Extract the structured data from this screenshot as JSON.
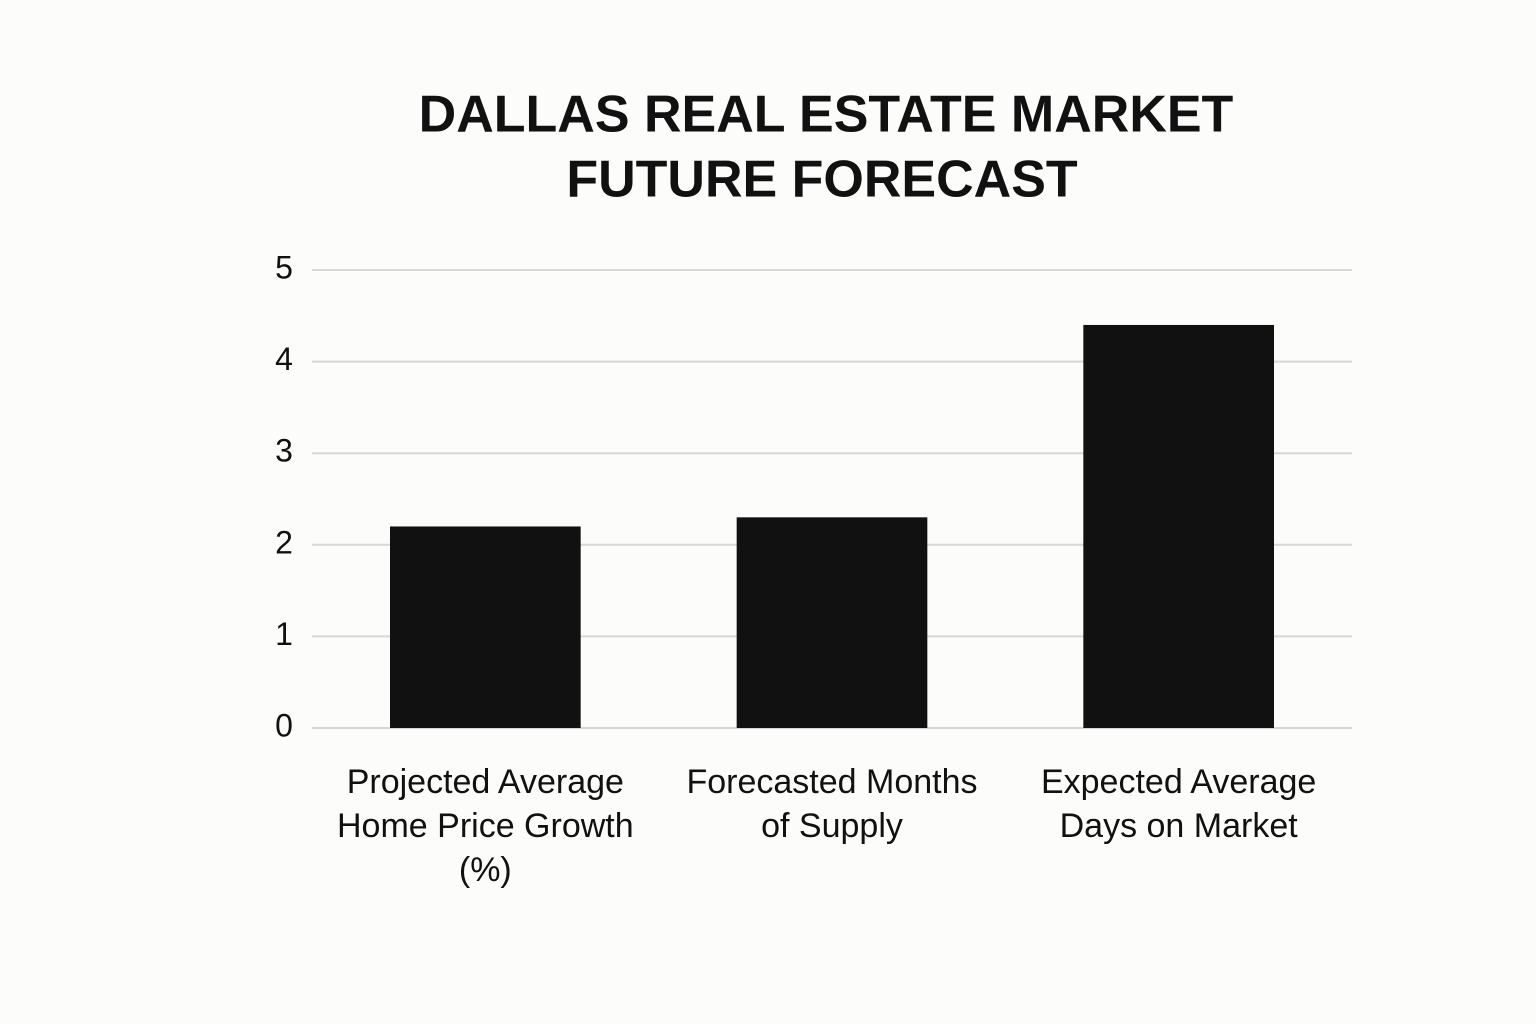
{
  "chart_data": {
    "type": "bar",
    "title": [
      "DALLAS REAL ESTATE MARKET",
      "FUTURE FORECAST"
    ],
    "categories": [
      "Projected Average Home Price Growth (%)",
      "Forecasted Months of Supply",
      "Expected Average Days on Market"
    ],
    "values": [
      2.2,
      2.3,
      4.4
    ],
    "color": "#111111",
    "ylim": [
      0,
      5
    ],
    "yticks": [
      0,
      1,
      2,
      3,
      4,
      5
    ],
    "grid": true
  }
}
